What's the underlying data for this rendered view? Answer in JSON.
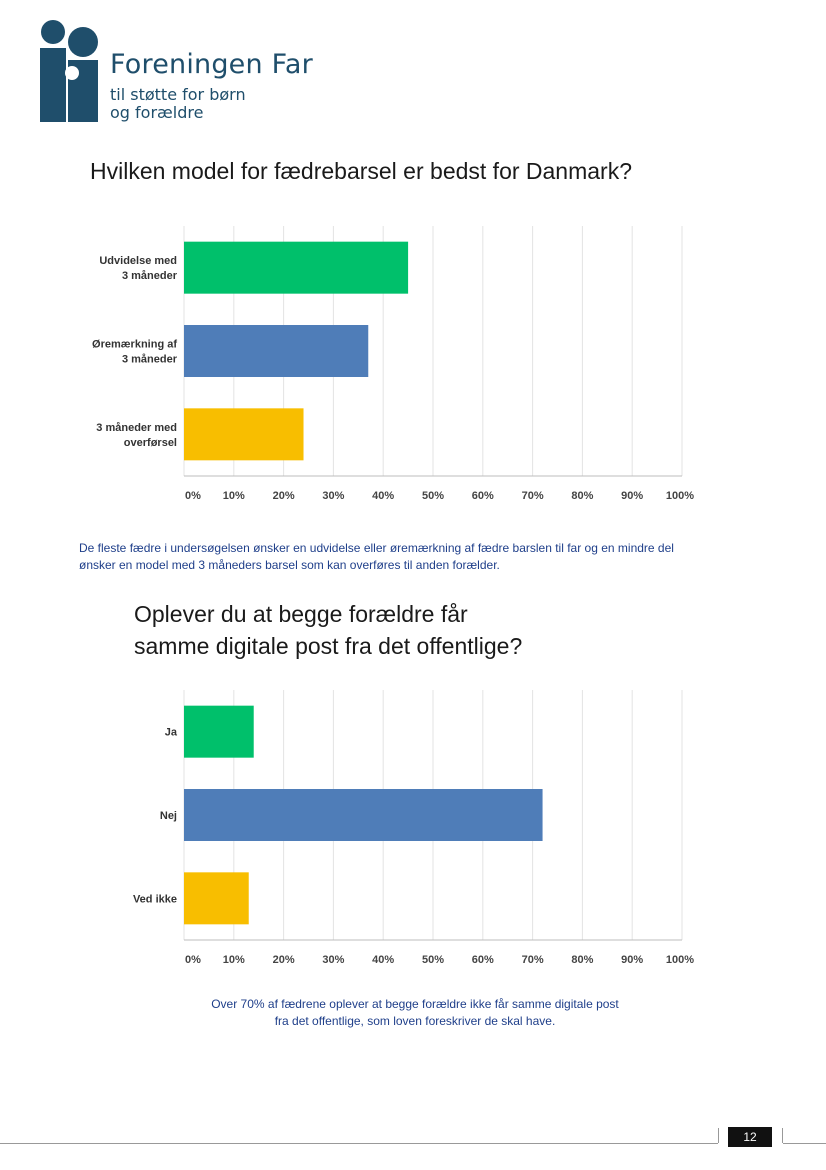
{
  "logo": {
    "name": "Foreningen Far",
    "tagline_line1": "til støtte for børn",
    "tagline_line2": "og forældre",
    "color": "#1f4e6b"
  },
  "colors": {
    "green": "#00c06b",
    "blue": "#4f7db8",
    "yellow": "#f8be00",
    "grid": "#e3e3e3"
  },
  "chart_data": [
    {
      "type": "bar",
      "orientation": "horizontal",
      "title": "Hvilken model for fædrebarsel er bedst for Danmark?",
      "categories": [
        [
          "Udvidelse med",
          "3 måneder"
        ],
        [
          "Øremærkning af",
          "3 måneder"
        ],
        [
          "3 måneder med",
          "overførsel"
        ]
      ],
      "values": [
        45,
        37,
        24
      ],
      "bar_colors": [
        "#00c06b",
        "#4f7db8",
        "#f8be00"
      ],
      "xlim": [
        0,
        100
      ],
      "x_ticks": [
        "0%",
        "10%",
        "20%",
        "30%",
        "40%",
        "50%",
        "60%",
        "70%",
        "80%",
        "90%",
        "100%"
      ],
      "grid": true
    },
    {
      "type": "bar",
      "orientation": "horizontal",
      "title": "Oplever du at begge forældre får samme digitale post fra det offentlige?",
      "categories": [
        [
          "Ja"
        ],
        [
          "Nej"
        ],
        [
          "Ved ikke"
        ]
      ],
      "values": [
        14,
        72,
        13
      ],
      "bar_colors": [
        "#00c06b",
        "#4f7db8",
        "#f8be00"
      ],
      "xlim": [
        0,
        100
      ],
      "x_ticks": [
        "0%",
        "10%",
        "20%",
        "30%",
        "40%",
        "50%",
        "60%",
        "70%",
        "80%",
        "90%",
        "100%"
      ],
      "grid": true
    }
  ],
  "titles": {
    "chart1_line1": "Hvilken model for fædrebarsel er bedst for Danmark?",
    "chart2_line1": "Oplever du at begge forældre får",
    "chart2_line2": "samme digitale post fra det offentlige?"
  },
  "captions": {
    "caption1_line1": "De fleste fædre i undersøgelsen ønsker en udvidelse eller øremærkning af fædre barslen til far og en mindre del",
    "caption1_line2": "ønsker en model med 3 måneders barsel som kan overføres til anden forælder.",
    "caption2_line1": "Over 70% af fædrene oplever at begge forældre ikke får samme digitale post",
    "caption2_line2": "fra det offentlige, som loven foreskriver de skal have."
  },
  "footer": {
    "page_number": "12"
  }
}
